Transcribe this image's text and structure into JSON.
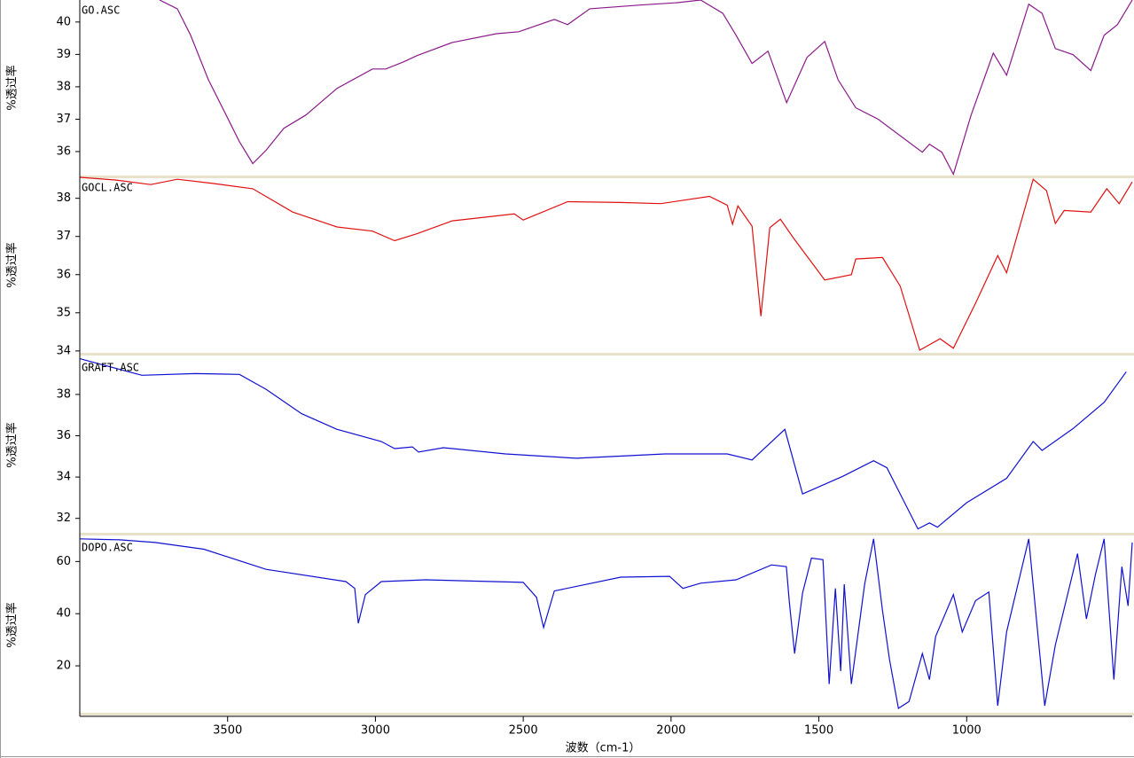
{
  "chart_data": [
    {
      "type": "line",
      "ylabel": "%透过率",
      "x": [
        3730,
        3670,
        3625,
        3565,
        3505,
        3460,
        3415,
        3370,
        3310,
        3235,
        3130,
        3010,
        2965,
        2905,
        2860,
        2740,
        2590,
        2515,
        2395,
        2350,
        2275,
        2110,
        1975,
        1900,
        1825,
        1780,
        1726,
        1672,
        1609,
        1540,
        1480,
        1435,
        1375,
        1300,
        1150,
        1126,
        1084,
        1045,
        985,
        910,
        865,
        790,
        745,
        700,
        640,
        580,
        535,
        490,
        440
      ],
      "series": [
        {
          "name": "GO.ASC",
          "color": "#8a1a8a",
          "values": [
            40.68,
            40.41,
            39.59,
            38.22,
            37.13,
            36.3,
            35.63,
            36.04,
            36.72,
            37.13,
            37.95,
            38.55,
            38.55,
            38.77,
            38.96,
            39.37,
            39.64,
            39.7,
            40.08,
            39.92,
            40.41,
            40.52,
            40.6,
            40.68,
            40.27,
            39.59,
            38.72,
            39.1,
            37.51,
            38.91,
            39.4,
            38.22,
            37.35,
            37.0,
            35.98,
            36.23,
            35.98,
            35.3,
            37.13,
            39.04,
            38.36,
            40.55,
            40.27,
            39.18,
            38.99,
            38.5,
            39.59,
            39.92,
            40.68
          ]
        }
      ],
      "xlim": [
        4000,
        440
      ],
      "ylim": [
        35.26,
        40.68
      ],
      "yticks": [
        36,
        37,
        38,
        39,
        40
      ]
    },
    {
      "type": "line",
      "ylabel": "%透过率",
      "x": [
        4000,
        3880,
        3760,
        3670,
        3550,
        3415,
        3280,
        3130,
        3010,
        2935,
        2860,
        2740,
        2530,
        2500,
        2350,
        2170,
        2035,
        1870,
        1810,
        1792,
        1774,
        1726,
        1696,
        1666,
        1630,
        1585,
        1480,
        1390,
        1375,
        1285,
        1225,
        1159,
        1090,
        1045,
        970,
        895,
        865,
        775,
        730,
        700,
        670,
        580,
        526,
        484,
        440
      ],
      "series": [
        {
          "name": "GOCL.ASC",
          "color": "#e01010",
          "values": [
            38.55,
            38.48,
            38.36,
            38.5,
            38.39,
            38.25,
            37.64,
            37.25,
            37.14,
            36.89,
            37.07,
            37.41,
            37.59,
            37.43,
            37.91,
            37.89,
            37.86,
            38.05,
            37.82,
            37.32,
            37.8,
            37.27,
            34.91,
            37.23,
            37.45,
            36.95,
            35.86,
            36.0,
            36.41,
            36.45,
            35.7,
            34.02,
            34.32,
            34.07,
            35.25,
            36.5,
            36.05,
            38.5,
            38.2,
            37.34,
            37.68,
            37.64,
            38.25,
            37.86,
            38.43
          ]
        }
      ],
      "xlim": [
        4000,
        440
      ],
      "ylim": [
        33.95,
        38.55
      ],
      "yticks": [
        34,
        35,
        36,
        37,
        38
      ]
    },
    {
      "type": "line",
      "ylabel": "%透过率",
      "x": [
        4000,
        3790,
        3610,
        3460,
        3370,
        3250,
        3130,
        2980,
        2935,
        2875,
        2854,
        2770,
        2560,
        2320,
        2020,
        1810,
        1726,
        1615,
        1555,
        1420,
        1315,
        1270,
        1165,
        1126,
        1099,
        1000,
        865,
        775,
        745,
        640,
        535,
        460
      ],
      "series": [
        {
          "name": "GRAFT.ASC",
          "color": "#1010d0",
          "values": [
            39.73,
            38.93,
            39.01,
            38.97,
            38.25,
            37.07,
            36.31,
            35.72,
            35.38,
            35.46,
            35.21,
            35.42,
            35.12,
            34.91,
            35.12,
            35.12,
            34.83,
            36.31,
            33.18,
            34.03,
            34.79,
            34.45,
            31.49,
            31.78,
            31.57,
            32.76,
            33.94,
            35.72,
            35.29,
            36.35,
            37.62,
            39.1
          ]
        }
      ],
      "xlim": [
        4000,
        440
      ],
      "ylim": [
        31.3,
        39.8
      ],
      "yticks": [
        32,
        34,
        36,
        38
      ]
    },
    {
      "type": "line",
      "ylabel": "%透过率",
      "xlabel": "波数（cm-1）",
      "x": [
        4000,
        3865,
        3745,
        3580,
        3370,
        3100,
        3070,
        3058,
        3034,
        2980,
        2830,
        2500,
        2455,
        2431,
        2395,
        2170,
        2005,
        1960,
        1900,
        1780,
        1660,
        1610,
        1600,
        1582,
        1555,
        1525,
        1486,
        1465,
        1444,
        1426,
        1414,
        1390,
        1345,
        1315,
        1285,
        1261,
        1231,
        1195,
        1150,
        1126,
        1105,
        1045,
        1015,
        970,
        925,
        895,
        865,
        790,
        736,
        700,
        625,
        595,
        565,
        535,
        502,
        475,
        454,
        440
      ],
      "series": [
        {
          "name": "DOPO.ASC",
          "color": "#1010d0",
          "values": [
            68.7,
            68.3,
            67.3,
            64.7,
            57,
            52.3,
            49.7,
            36.3,
            47.3,
            52.3,
            53,
            52,
            46.3,
            34.7,
            48.7,
            54,
            54.3,
            49.7,
            51.7,
            53,
            58.7,
            58,
            44.7,
            24.7,
            48,
            61.3,
            60.7,
            13,
            49.7,
            18,
            51.3,
            13,
            51.3,
            68.7,
            41.3,
            22.3,
            3.7,
            6.3,
            24.7,
            14.7,
            31.3,
            47.3,
            33,
            45,
            48.3,
            4.7,
            33,
            68.7,
            4.7,
            28,
            63,
            38,
            54.7,
            68.7,
            14.7,
            58,
            43,
            67.3
          ]
        }
      ],
      "xlim": [
        4000,
        440
      ],
      "ylim": [
        2,
        69.3
      ],
      "yticks": [
        20,
        40,
        60
      ],
      "xticks": [
        3500,
        3000,
        2500,
        2000,
        1500,
        1000
      ]
    }
  ]
}
